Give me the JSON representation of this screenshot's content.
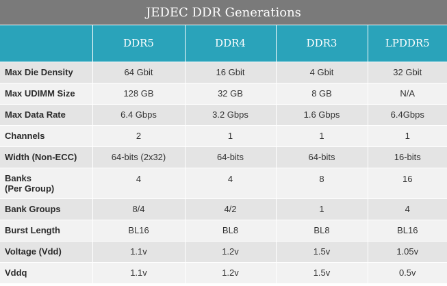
{
  "title": "JEDEC DDR Generations",
  "columns": [
    "",
    "DDR5",
    "DDR4",
    "DDR3",
    "LPDDR5"
  ],
  "rows": [
    {
      "label": [
        "Max Die Density"
      ],
      "values": [
        "64 Gbit",
        "16 Gbit",
        "4 Gbit",
        "32 Gbit"
      ]
    },
    {
      "label": [
        "Max UDIMM Size"
      ],
      "values": [
        "128 GB",
        "32 GB",
        "8 GB",
        "N/A"
      ]
    },
    {
      "label": [
        "Max Data Rate"
      ],
      "values": [
        "6.4 Gbps",
        "3.2 Gbps",
        "1.6 Gbps",
        "6.4Gbps"
      ]
    },
    {
      "label": [
        "Channels"
      ],
      "values": [
        "2",
        "1",
        "1",
        "1"
      ]
    },
    {
      "label": [
        "Width (Non-ECC)"
      ],
      "values": [
        "64-bits (2x32)",
        "64-bits",
        "64-bits",
        "16-bits"
      ]
    },
    {
      "label": [
        "Banks",
        "(Per Group)"
      ],
      "values": [
        "4",
        "4",
        "8",
        "16"
      ]
    },
    {
      "label": [
        "Bank Groups"
      ],
      "values": [
        "8/4",
        "4/2",
        "1",
        "4"
      ]
    },
    {
      "label": [
        "Burst Length"
      ],
      "values": [
        "BL16",
        "BL8",
        "BL8",
        "BL16"
      ]
    },
    {
      "label": [
        "Voltage (Vdd)"
      ],
      "values": [
        "1.1v",
        "1.2v",
        "1.5v",
        "1.05v"
      ]
    },
    {
      "label": [
        "Vddq"
      ],
      "values": [
        "1.1v",
        "1.2v",
        "1.5v",
        "0.5v"
      ]
    }
  ]
}
